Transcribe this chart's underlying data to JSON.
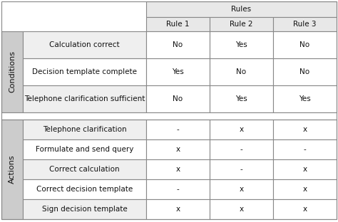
{
  "title_row": "Rules",
  "header_cols": [
    "Rule 1",
    "Rule 2",
    "Rule 3"
  ],
  "conditions_label": "Conditions",
  "actions_label": "Actions",
  "conditions_rows": [
    [
      "Calculation correct",
      "No",
      "Yes",
      "No"
    ],
    [
      "Decision template complete",
      "Yes",
      "No",
      "No"
    ],
    [
      "Telephone clarification sufficient",
      "No",
      "Yes",
      "Yes"
    ]
  ],
  "actions_rows": [
    [
      "Telephone clarification",
      "-",
      "x",
      "x"
    ],
    [
      "Formulate and send query",
      "x",
      "-",
      "-"
    ],
    [
      "Correct calculation",
      "x",
      "-",
      "x"
    ],
    [
      "Correct decision template",
      "-",
      "x",
      "x"
    ],
    [
      "Sign decision template",
      "x",
      "x",
      "x"
    ]
  ],
  "header_bg": "#e8e8e8",
  "row_bg_light": "#efefef",
  "row_bg_white": "#ffffff",
  "label_bg": "#cccccc",
  "border_color": "#888888",
  "gap_color": "#ffffff",
  "fontsize": 7.5,
  "label_fontsize": 8.0
}
